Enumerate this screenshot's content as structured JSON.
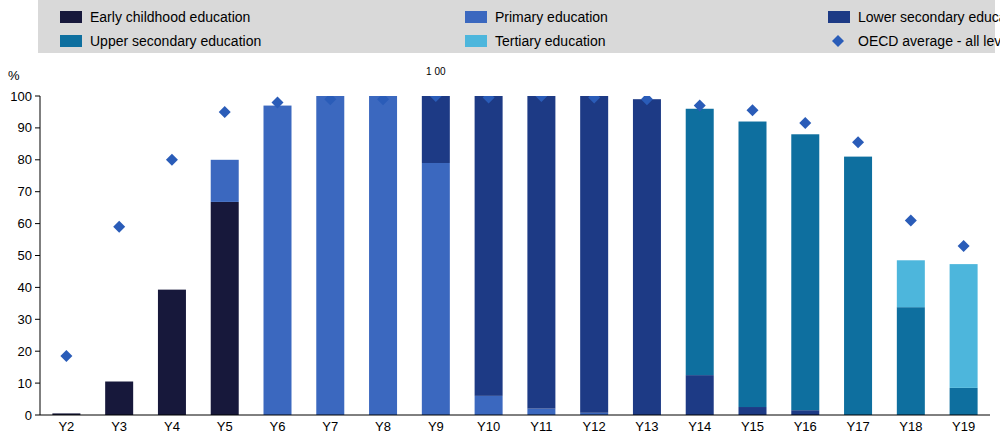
{
  "chart_data": {
    "type": "bar",
    "stacked": true,
    "y_label": "%",
    "categories": [
      "Y2",
      "Y3",
      "Y4",
      "Y5",
      "Y6",
      "Y7",
      "Y8",
      "Y9",
      "Y10",
      "Y11",
      "Y12",
      "Y13",
      "Y14",
      "Y15",
      "Y16",
      "Y17",
      "Y18",
      "Y19"
    ],
    "series": [
      {
        "name": "Early childhood education",
        "color": "#17183b",
        "values": [
          0.5,
          10.5,
          39.3,
          66.8,
          0,
          0,
          0,
          0,
          0,
          0,
          0,
          0,
          0,
          0,
          0,
          0,
          0,
          0
        ]
      },
      {
        "name": "Primary education",
        "color": "#3b68bf",
        "values": [
          0,
          0,
          0,
          13.2,
          97,
          100,
          100,
          79,
          6,
          2,
          0.7,
          0,
          0,
          0,
          0,
          0,
          0,
          0
        ]
      },
      {
        "name": "Lower secondary education",
        "color": "#1d3a85",
        "values": [
          0,
          0,
          0,
          0,
          0,
          0,
          0,
          21,
          94,
          98,
          99.3,
          99,
          12.5,
          2.5,
          1.5,
          0,
          0,
          0
        ]
      },
      {
        "name": "Upper secondary education",
        "color": "#0e6f9f",
        "values": [
          0,
          0,
          0,
          0,
          0,
          0,
          0,
          0,
          0,
          0,
          0,
          0,
          83.5,
          89.5,
          86.5,
          81,
          33.8,
          8.5
        ]
      },
      {
        "name": "Tertiary education",
        "color": "#4db6dc",
        "values": [
          0,
          0,
          0,
          0,
          0,
          0,
          0,
          0,
          0,
          0,
          0,
          0,
          0,
          0,
          0,
          0,
          14.7,
          38.8
        ]
      },
      {
        "name": "OECD average - all levels",
        "color": "#2a5cb8",
        "type": "scatter",
        "marker": "diamond",
        "values": [
          18.5,
          59,
          80,
          95,
          98,
          99,
          99,
          100,
          99.5,
          100,
          99.5,
          99,
          97,
          95.5,
          91.5,
          85.5,
          61,
          53
        ]
      }
    ],
    "annotations": [
      {
        "text": "1 00",
        "category": "Y9"
      }
    ],
    "ylim": [
      0,
      100
    ],
    "yticks": [
      0,
      10,
      20,
      30,
      40,
      50,
      60,
      70,
      80,
      90,
      100
    ],
    "grid": false,
    "legend": "top"
  }
}
